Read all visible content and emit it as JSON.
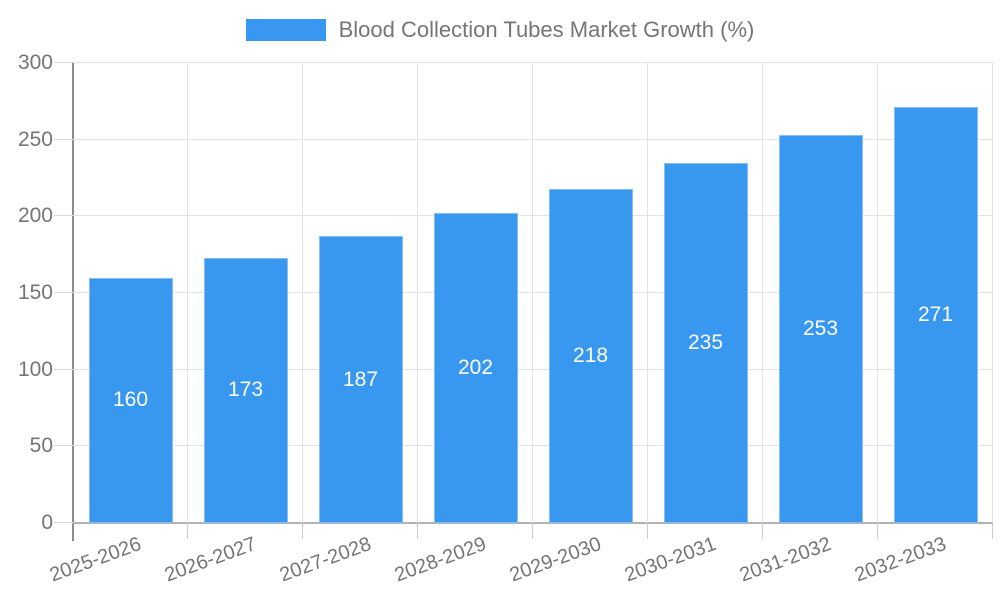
{
  "chart_data": {
    "type": "bar",
    "title": "Blood Collection Tubes Market Growth (%)",
    "legend_position": "top-center",
    "categories": [
      "2025-2026",
      "2026-2027",
      "2027-2028",
      "2028-2029",
      "2029-2030",
      "2030-2031",
      "2031-2032",
      "2032-2033"
    ],
    "values": [
      160,
      173,
      187,
      202,
      218,
      235,
      253,
      271
    ],
    "xlabel": "",
    "ylabel": "",
    "ylim": [
      0,
      300
    ],
    "yticks": [
      0,
      50,
      100,
      150,
      200,
      250,
      300
    ],
    "grid": true,
    "x_label_rotation_deg": -20,
    "bar_color": "#3898f0",
    "bar_border_color": "#85bdf4",
    "value_label_color": "#ffffff",
    "axis_text_color": "#757575",
    "grid_color": "#e3e3e3",
    "background_color": "#ffffff"
  }
}
